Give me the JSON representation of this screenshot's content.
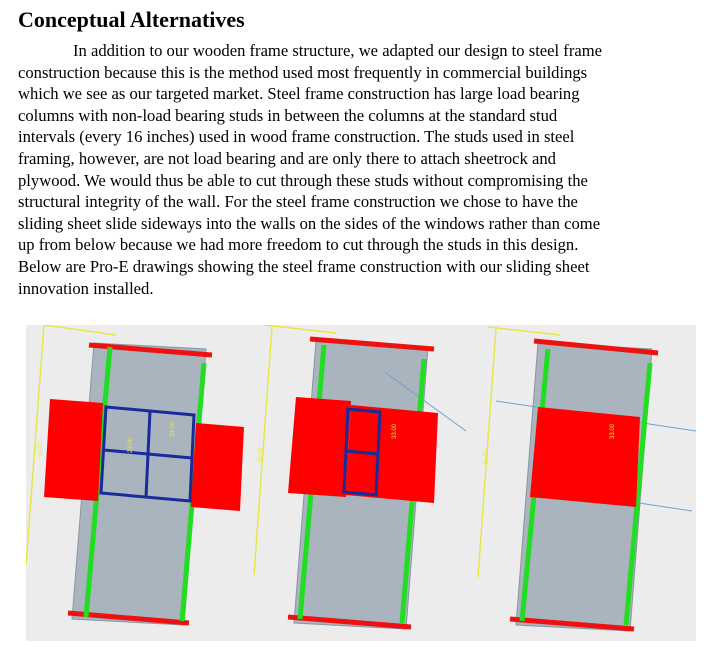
{
  "heading": "Conceptual Alternatives",
  "paragraph_lines": [
    "In addition to our wooden frame structure, we adapted our design to steel frame",
    "construction because this is the method used most frequently in commercial buildings",
    "which we see as our targeted market. Steel frame construction has large load bearing",
    "columns with non-load bearing studs in between the columns at the standard stud",
    "intervals (every 16 inches) used in wood frame construction. The studs used in steel",
    "framing, however, are not load bearing and are only there to attach sheetrock and",
    "plywood. We would thus be able to cut through these studs without compromising the",
    "structural integrity of the wall. For the steel frame construction we chose to have the",
    "sliding sheet slide sideways into the walls on the sides of the windows rather than come",
    "up from below because we had more freedom to cut through the studs in this design.",
    "Below are Pro-E drawings showing the steel frame construction with our sliding sheet",
    "innovation installed."
  ],
  "figure": {
    "panels": [
      {
        "state": "sheets closed, extended beyond both sides of window",
        "dim_labels": [
          "96.00",
          "33.00",
          "23.00"
        ]
      },
      {
        "state": "sheet partly slid in",
        "dim_labels": [
          "96.00",
          "33.00"
        ]
      },
      {
        "state": "sheet covering window",
        "dim_labels": [
          "96.00",
          "33.00"
        ]
      }
    ],
    "colors": {
      "background": "#ececec",
      "wall": "#a9b4bf",
      "column": "#22dd22",
      "track": "#ee1111",
      "sheet": "#ff0000",
      "window_frame": "#1a2a9a",
      "dimension_line": "#e6e64a"
    }
  }
}
